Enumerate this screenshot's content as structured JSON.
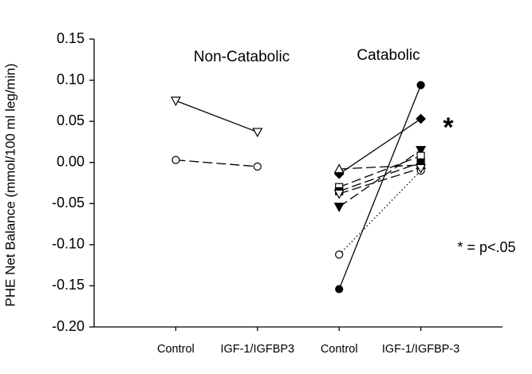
{
  "chart_data": {
    "type": "line",
    "ylabel": "PHE Net Balance (mmol/100 ml leg/min)",
    "categories": [
      "Control",
      "IGF-1/IGFBP3",
      "Control",
      "IGF-1/IGFBP-3"
    ],
    "group_labels": [
      "Non-Catabolic",
      "Catabolic"
    ],
    "annotations": [
      "*",
      "* = p<.05"
    ],
    "ylim": [
      -0.2,
      0.15
    ],
    "yticks": [
      {
        "value": -0.2,
        "label": "-0.20"
      },
      -0.15,
      {
        "value": -0.1,
        "label": "-0.10"
      },
      -0.05,
      {
        "value": 0,
        "label": "0.00"
      },
      0.05,
      {
        "value": 0.1,
        "label": "0.10"
      },
      0.15
    ],
    "series": [
      {
        "color": "#000000",
        "marker": "triangle-down",
        "filled": false,
        "dash": "solid",
        "values": [
          0.075,
          0.037,
          null,
          null
        ]
      },
      {
        "color": "#000000",
        "marker": "circle",
        "filled": false,
        "dash": "dashed",
        "values": [
          0.003,
          -0.005,
          null,
          null
        ]
      },
      {
        "color": "#000000",
        "marker": "circle",
        "filled": true,
        "dash": "solid",
        "values": [
          null,
          null,
          -0.154,
          0.094
        ]
      },
      {
        "color": "#000000",
        "marker": "diamond",
        "filled": true,
        "dash": "solid",
        "values": [
          null,
          null,
          -0.014,
          0.053
        ]
      },
      {
        "color": "#000000",
        "marker": "triangle-down",
        "filled": true,
        "dash": "dashed",
        "values": [
          null,
          null,
          -0.054,
          0.015
        ]
      },
      {
        "color": "#000000",
        "marker": "triangle-up",
        "filled": false,
        "dash": "dashed",
        "values": [
          null,
          null,
          -0.008,
          -0.003
        ]
      },
      {
        "color": "#000000",
        "marker": "square",
        "filled": false,
        "dash": "dashed",
        "values": [
          null,
          null,
          -0.03,
          0.008
        ]
      },
      {
        "color": "#000000",
        "marker": "square",
        "filled": true,
        "dash": "dashed",
        "values": [
          null,
          null,
          -0.035,
          0.0
        ]
      },
      {
        "color": "#000000",
        "marker": "circle",
        "filled": false,
        "dash": "dotted",
        "values": [
          null,
          null,
          -0.112,
          -0.01
        ]
      },
      {
        "color": "#000000",
        "marker": "triangle-down",
        "filled": false,
        "dash": "dashed",
        "values": [
          null,
          null,
          -0.038,
          -0.007
        ]
      }
    ]
  }
}
